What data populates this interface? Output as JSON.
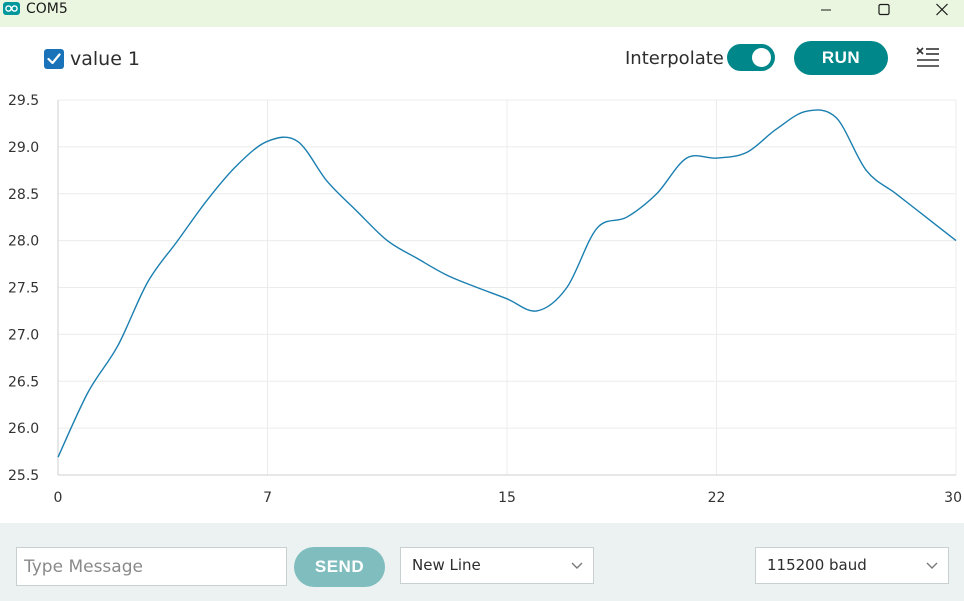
{
  "window": {
    "title": "COM5",
    "app_icon": "arduino-infinity-icon",
    "controls": [
      "minimize-icon",
      "maximize-icon",
      "close-icon"
    ]
  },
  "toolbar": {
    "series_checkbox_checked": true,
    "series_label": "value 1",
    "interpolate_label": "Interpolate",
    "interpolate_on": true,
    "run_label": "RUN",
    "clear_icon": "clear-list-icon",
    "accent_color": "#00878a"
  },
  "chart_data": {
    "type": "line",
    "x": [
      0,
      1,
      2,
      3,
      4,
      5,
      6,
      7,
      8,
      9,
      10,
      11,
      12,
      13,
      14,
      15,
      16,
      17,
      18,
      19,
      20,
      21,
      22,
      23,
      24,
      25,
      26,
      27,
      28,
      29,
      30
    ],
    "series": [
      {
        "name": "value 1",
        "color": "#1a7fb0",
        "values": [
          25.69,
          26.38,
          26.88,
          27.56,
          28.0,
          28.44,
          28.81,
          29.06,
          29.06,
          28.63,
          28.31,
          28.0,
          27.81,
          27.63,
          27.5,
          27.38,
          27.25,
          27.5,
          28.13,
          28.25,
          28.5,
          28.88,
          28.88,
          28.94,
          29.19,
          29.38,
          29.31,
          28.75,
          28.5,
          28.25,
          28.0
        ]
      }
    ],
    "xticks": [
      "0",
      "7",
      "15",
      "22",
      "30"
    ],
    "xtick_values": [
      0,
      7,
      15,
      22,
      30
    ],
    "yticks": [
      "25.5",
      "26.0",
      "26.5",
      "27.0",
      "27.5",
      "28.0",
      "28.5",
      "29.0",
      "29.5"
    ],
    "ytick_values": [
      25.5,
      26.0,
      26.5,
      27.0,
      27.5,
      28.0,
      28.5,
      29.0,
      29.5
    ],
    "xlim": [
      0,
      30
    ],
    "ylim": [
      25.5,
      29.5
    ],
    "grid": true
  },
  "bottom": {
    "message_placeholder": "Type Message",
    "message_value": "",
    "send_label": "SEND",
    "line_ending": "New Line",
    "baud_rate": "115200 baud"
  }
}
